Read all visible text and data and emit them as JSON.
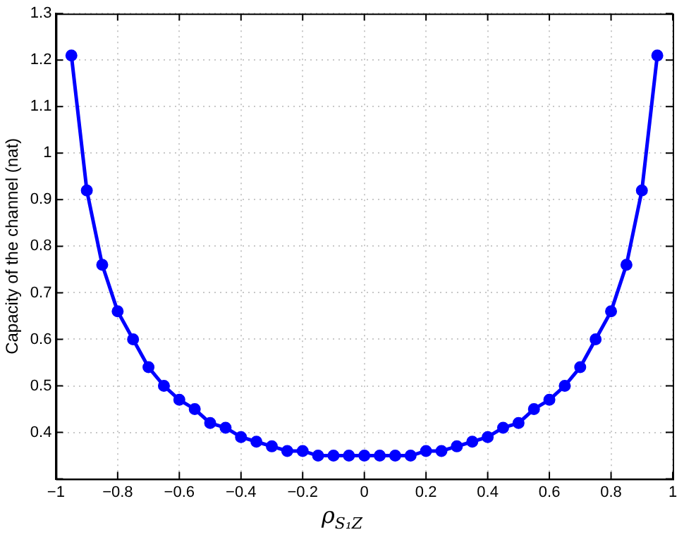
{
  "chart_data": {
    "type": "line",
    "xlabel": "ρ$_{S₁Z}$",
    "ylabel": "Capacity of the channel (nat)",
    "x": [
      -0.95,
      -0.9,
      -0.85,
      -0.8,
      -0.75,
      -0.7,
      -0.65,
      -0.6,
      -0.55,
      -0.5,
      -0.45,
      -0.4,
      -0.35,
      -0.3,
      -0.25,
      -0.2,
      -0.15,
      -0.1,
      -0.05,
      0,
      0.05,
      0.1,
      0.15,
      0.2,
      0.25,
      0.3,
      0.35,
      0.4,
      0.45,
      0.5,
      0.55,
      0.6,
      0.65,
      0.7,
      0.75,
      0.8,
      0.85,
      0.9,
      0.95
    ],
    "series": [
      {
        "color": "#0000ff",
        "values": [
          1.21,
          0.92,
          0.76,
          0.66,
          0.6,
          0.54,
          0.5,
          0.47,
          0.45,
          0.42,
          0.41,
          0.39,
          0.38,
          0.37,
          0.36,
          0.36,
          0.35,
          0.35,
          0.35,
          0.35,
          0.35,
          0.35,
          0.35,
          0.36,
          0.36,
          0.37,
          0.38,
          0.39,
          0.41,
          0.42,
          0.45,
          0.47,
          0.5,
          0.54,
          0.6,
          0.66,
          0.76,
          0.92,
          1.21
        ]
      }
    ],
    "xlim": [
      -1,
      1
    ],
    "xticks": [
      -1,
      -0.8,
      -0.6,
      -0.4,
      -0.2,
      0,
      0.2,
      0.4,
      0.6,
      0.8,
      1
    ],
    "ylim": [
      0.3,
      1.3
    ],
    "yticks": [
      {
        "value": 0.3,
        "label": null
      },
      0.4,
      0.5,
      0.6,
      0.7,
      0.8,
      0.9,
      1,
      1.1,
      1.2,
      1.3
    ],
    "grid": true,
    "legend": false,
    "marker": "circle",
    "line_style": "solid"
  }
}
